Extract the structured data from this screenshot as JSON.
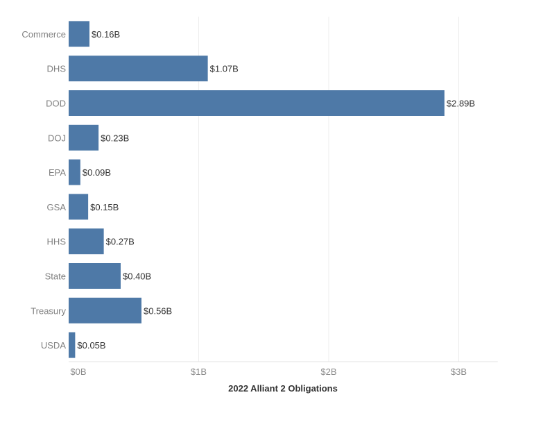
{
  "chart_data": {
    "type": "bar",
    "orientation": "horizontal",
    "categories": [
      "Commerce",
      "DHS",
      "DOD",
      "DOJ",
      "EPA",
      "GSA",
      "HHS",
      "State",
      "Treasury",
      "USDA"
    ],
    "values": [
      0.16,
      1.07,
      2.89,
      0.23,
      0.09,
      0.15,
      0.27,
      0.4,
      0.56,
      0.05
    ],
    "value_labels": [
      "$0.16B",
      "$1.07B",
      "$2.89B",
      "$0.23B",
      "$0.09B",
      "$0.15B",
      "$0.27B",
      "$0.40B",
      "$0.56B",
      "$0.05B"
    ],
    "x_ticks": [
      0,
      1,
      2,
      3
    ],
    "x_tick_labels": [
      "$0B",
      "$1B",
      "$2B",
      "$3B"
    ],
    "xlim": [
      0,
      3.3
    ],
    "xlabel": "2022  Alliant 2 Obligations",
    "ylabel": "",
    "title": "",
    "grid": true,
    "legend": "none",
    "bar_color": "#4e79a7"
  }
}
